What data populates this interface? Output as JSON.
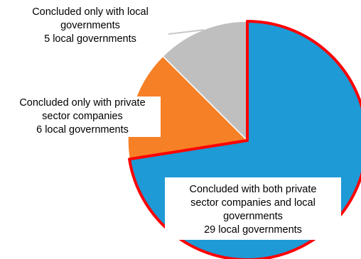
{
  "chart_data": {
    "type": "pie",
    "title": "",
    "highlight_color": "#ff0000",
    "slices": [
      {
        "label_lines": [
          "Concluded with both private",
          "sector companies and local",
          "governments"
        ],
        "value": 29,
        "value_text": "29 local governments",
        "color": "#1e9ad6",
        "highlighted": true
      },
      {
        "label_lines": [
          "Concluded only with private",
          "sector companies"
        ],
        "value": 6,
        "value_text": "6 local governments",
        "color": "#f68026",
        "highlighted": false
      },
      {
        "label_lines": [
          "Concluded only with local",
          "governments"
        ],
        "value": 5,
        "value_text": "5 local governments",
        "color": "#bfbfbf",
        "highlighted": false
      }
    ]
  }
}
